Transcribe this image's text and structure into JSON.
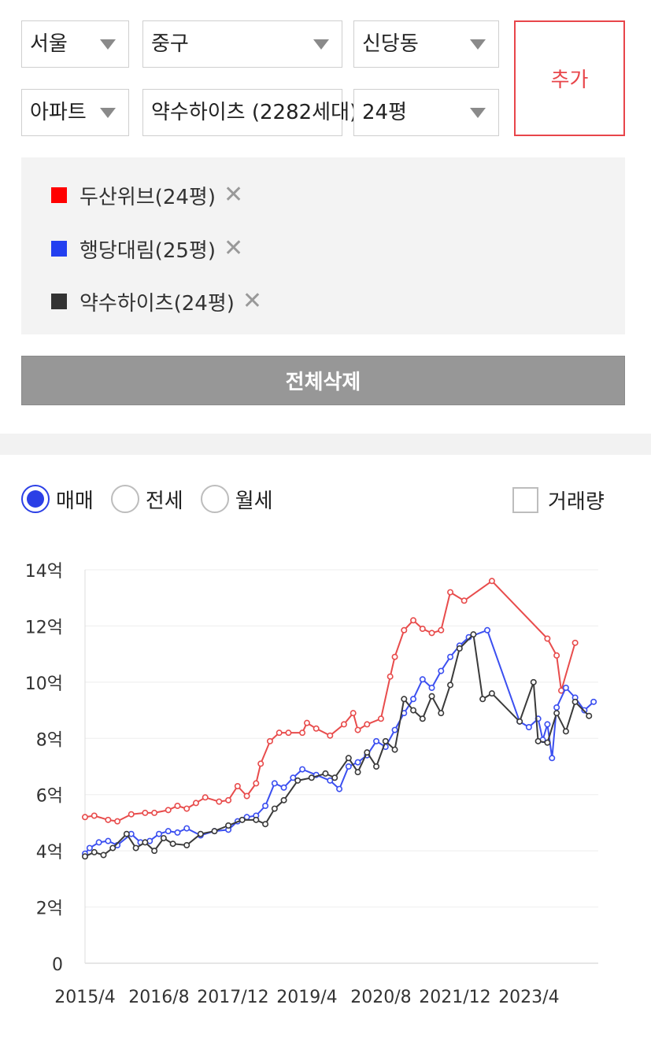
{
  "filters": {
    "city": "서울",
    "district": "중구",
    "dong": "신당동",
    "type": "아파트",
    "complex": "약수하이츠 (2282세대)",
    "size": "24평"
  },
  "add_button": "추가",
  "compare_items": [
    {
      "label": "두산위브(24평)",
      "color": "#ff0000"
    },
    {
      "label": "행당대림(25평)",
      "color": "#2340f0"
    },
    {
      "label": "약수하이츠(24평)",
      "color": "#333333"
    }
  ],
  "remove_icon": "close-icon",
  "clear_all": "전체삭제",
  "tabs": [
    {
      "label": "매매",
      "selected": true
    },
    {
      "label": "전세",
      "selected": false
    },
    {
      "label": "월세",
      "selected": false
    }
  ],
  "volume_label": "거래량",
  "volume_checked": false,
  "chart_data": {
    "type": "line",
    "title": "",
    "xlabel": "",
    "ylabel": "",
    "ylim": [
      0,
      14
    ],
    "grid": true,
    "yticks": [
      "0",
      "2억",
      "4억",
      "6억",
      "8억",
      "10억",
      "12억",
      "14억"
    ],
    "xticks": [
      "2015/4",
      "2016/8",
      "2017/12",
      "2019/4",
      "2020/8",
      "2021/12",
      "2023/4"
    ],
    "series": [
      {
        "name": "두산위브(24평)",
        "color": "#e84c4c",
        "points": [
          [
            "2015/4",
            5.2
          ],
          [
            "2015/6",
            5.25
          ],
          [
            "2015/9",
            5.1
          ],
          [
            "2015/11",
            5.05
          ],
          [
            "2016/2",
            5.3
          ],
          [
            "2016/5",
            5.35
          ],
          [
            "2016/7",
            5.35
          ],
          [
            "2016/10",
            5.45
          ],
          [
            "2016/12",
            5.6
          ],
          [
            "2017/2",
            5.5
          ],
          [
            "2017/4",
            5.7
          ],
          [
            "2017/6",
            5.9
          ],
          [
            "2017/9",
            5.75
          ],
          [
            "2017/11",
            5.8
          ],
          [
            "2018/1",
            6.3
          ],
          [
            "2018/3",
            5.95
          ],
          [
            "2018/5",
            6.4
          ],
          [
            "2018/6",
            7.1
          ],
          [
            "2018/8",
            7.9
          ],
          [
            "2018/10",
            8.2
          ],
          [
            "2018/12",
            8.2
          ],
          [
            "2019/3",
            8.2
          ],
          [
            "2019/4",
            8.55
          ],
          [
            "2019/6",
            8.35
          ],
          [
            "2019/9",
            8.1
          ],
          [
            "2019/12",
            8.5
          ],
          [
            "2020/2",
            8.9
          ],
          [
            "2020/3",
            8.3
          ],
          [
            "2020/5",
            8.5
          ],
          [
            "2020/8",
            8.7
          ],
          [
            "2020/10",
            10.2
          ],
          [
            "2020/11",
            10.9
          ],
          [
            "2021/1",
            11.85
          ],
          [
            "2021/3",
            12.2
          ],
          [
            "2021/5",
            11.9
          ],
          [
            "2021/7",
            11.75
          ],
          [
            "2021/9",
            11.85
          ],
          [
            "2021/11",
            13.2
          ],
          [
            "2022/2",
            12.9
          ],
          [
            "2022/8",
            13.6
          ],
          [
            "2023/8",
            11.55
          ],
          [
            "2023/10",
            10.95
          ],
          [
            "2023/11",
            9.7
          ],
          [
            "2024/2",
            11.4
          ]
        ]
      },
      {
        "name": "행당대림(25평)",
        "color": "#3b4ff0",
        "points": [
          [
            "2015/4",
            3.9
          ],
          [
            "2015/5",
            4.1
          ],
          [
            "2015/7",
            4.3
          ],
          [
            "2015/9",
            4.35
          ],
          [
            "2015/11",
            4.2
          ],
          [
            "2016/2",
            4.6
          ],
          [
            "2016/4",
            4.3
          ],
          [
            "2016/6",
            4.35
          ],
          [
            "2016/8",
            4.6
          ],
          [
            "2016/10",
            4.7
          ],
          [
            "2016/12",
            4.65
          ],
          [
            "2017/2",
            4.8
          ],
          [
            "2017/5",
            4.55
          ],
          [
            "2017/8",
            4.7
          ],
          [
            "2017/11",
            4.75
          ],
          [
            "2018/1",
            5.05
          ],
          [
            "2018/3",
            5.2
          ],
          [
            "2018/5",
            5.25
          ],
          [
            "2018/7",
            5.6
          ],
          [
            "2018/9",
            6.4
          ],
          [
            "2018/11",
            6.25
          ],
          [
            "2019/1",
            6.6
          ],
          [
            "2019/3",
            6.9
          ],
          [
            "2019/6",
            6.7
          ],
          [
            "2019/9",
            6.5
          ],
          [
            "2019/11",
            6.2
          ],
          [
            "2020/1",
            7.0
          ],
          [
            "2020/3",
            7.15
          ],
          [
            "2020/5",
            7.4
          ],
          [
            "2020/7",
            7.9
          ],
          [
            "2020/9",
            7.7
          ],
          [
            "2020/11",
            8.3
          ],
          [
            "2021/1",
            8.9
          ],
          [
            "2021/3",
            9.4
          ],
          [
            "2021/5",
            10.1
          ],
          [
            "2021/7",
            9.8
          ],
          [
            "2021/9",
            10.4
          ],
          [
            "2021/11",
            10.9
          ],
          [
            "2022/1",
            11.3
          ],
          [
            "2022/3",
            11.6
          ],
          [
            "2022/7",
            11.85
          ],
          [
            "2023/2",
            8.6
          ],
          [
            "2023/4",
            8.4
          ],
          [
            "2023/6",
            8.7
          ],
          [
            "2023/7",
            7.95
          ],
          [
            "2023/8",
            8.5
          ],
          [
            "2023/9",
            7.3
          ],
          [
            "2023/10",
            9.1
          ],
          [
            "2023/12",
            9.8
          ],
          [
            "2024/2",
            9.45
          ],
          [
            "2024/4",
            9.0
          ],
          [
            "2024/6",
            9.3
          ]
        ]
      },
      {
        "name": "약수하이츠(24평)",
        "color": "#3a3a3a",
        "points": [
          [
            "2015/4",
            3.8
          ],
          [
            "2015/6",
            3.95
          ],
          [
            "2015/8",
            3.85
          ],
          [
            "2015/10",
            4.1
          ],
          [
            "2016/1",
            4.6
          ],
          [
            "2016/3",
            4.1
          ],
          [
            "2016/5",
            4.3
          ],
          [
            "2016/7",
            4.0
          ],
          [
            "2016/9",
            4.45
          ],
          [
            "2016/11",
            4.25
          ],
          [
            "2017/2",
            4.2
          ],
          [
            "2017/5",
            4.6
          ],
          [
            "2017/8",
            4.7
          ],
          [
            "2017/11",
            4.9
          ],
          [
            "2018/2",
            5.1
          ],
          [
            "2018/5",
            5.1
          ],
          [
            "2018/7",
            4.95
          ],
          [
            "2018/9",
            5.5
          ],
          [
            "2018/11",
            5.8
          ],
          [
            "2019/2",
            6.5
          ],
          [
            "2019/5",
            6.6
          ],
          [
            "2019/8",
            6.75
          ],
          [
            "2019/10",
            6.6
          ],
          [
            "2020/1",
            7.3
          ],
          [
            "2020/3",
            6.8
          ],
          [
            "2020/5",
            7.5
          ],
          [
            "2020/7",
            7.0
          ],
          [
            "2020/9",
            7.9
          ],
          [
            "2020/11",
            7.6
          ],
          [
            "2021/1",
            9.4
          ],
          [
            "2021/3",
            9.0
          ],
          [
            "2021/5",
            8.7
          ],
          [
            "2021/7",
            9.5
          ],
          [
            "2021/9",
            8.9
          ],
          [
            "2021/11",
            9.9
          ],
          [
            "2022/1",
            11.2
          ],
          [
            "2022/4",
            11.7
          ],
          [
            "2022/6",
            9.4
          ],
          [
            "2022/8",
            9.6
          ],
          [
            "2023/2",
            8.6
          ],
          [
            "2023/5",
            10.0
          ],
          [
            "2023/6",
            7.9
          ],
          [
            "2023/8",
            7.85
          ],
          [
            "2023/10",
            8.9
          ],
          [
            "2023/12",
            8.25
          ],
          [
            "2024/2",
            9.3
          ],
          [
            "2024/5",
            8.8
          ]
        ]
      }
    ]
  }
}
